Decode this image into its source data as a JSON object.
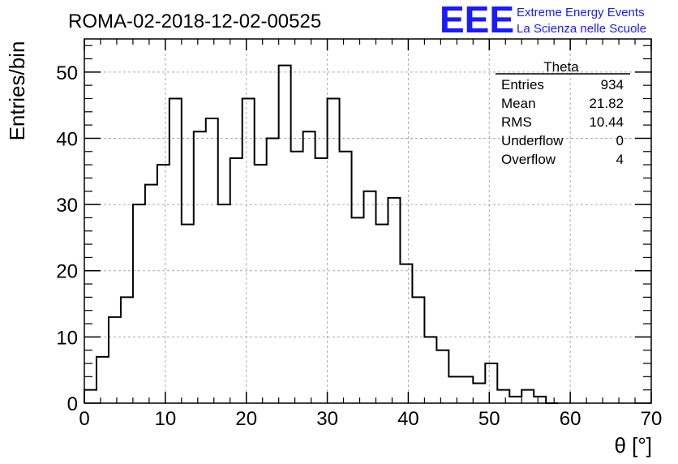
{
  "chart_data": {
    "type": "bar",
    "title": "ROMA-02-2018-12-02-00525",
    "xlabel": "θ [°]",
    "ylabel": "Entries/bin",
    "xlim": [
      0,
      70
    ],
    "ylim": [
      0,
      55
    ],
    "grid": true,
    "bin_width": 1.5,
    "x_start": 0,
    "values": [
      2,
      7,
      13,
      16,
      30,
      33,
      36,
      46,
      27,
      41,
      43,
      30,
      37,
      46,
      36,
      40,
      51,
      38,
      41,
      37,
      46,
      38,
      28,
      32,
      27,
      31,
      21,
      16,
      10,
      8,
      4,
      4,
      3,
      6,
      2,
      1,
      2,
      1,
      0
    ],
    "x_ticks": [
      "0",
      "10",
      "20",
      "30",
      "40",
      "50",
      "60",
      "70"
    ],
    "y_ticks": [
      "0",
      "10",
      "20",
      "30",
      "40",
      "50"
    ],
    "stats_box": {
      "title": "Theta",
      "rows": [
        {
          "label": "Entries",
          "value": "934"
        },
        {
          "label": "Mean",
          "value": "21.82"
        },
        {
          "label": "RMS",
          "value": "10.44"
        },
        {
          "label": "Underflow",
          "value": "0"
        },
        {
          "label": "Overflow",
          "value": "4"
        }
      ]
    }
  },
  "logo": {
    "text": "EEE",
    "line1": "Extreme Energy Events",
    "line2": "La Scienza nelle Scuole",
    "color": "#1a1aff"
  }
}
